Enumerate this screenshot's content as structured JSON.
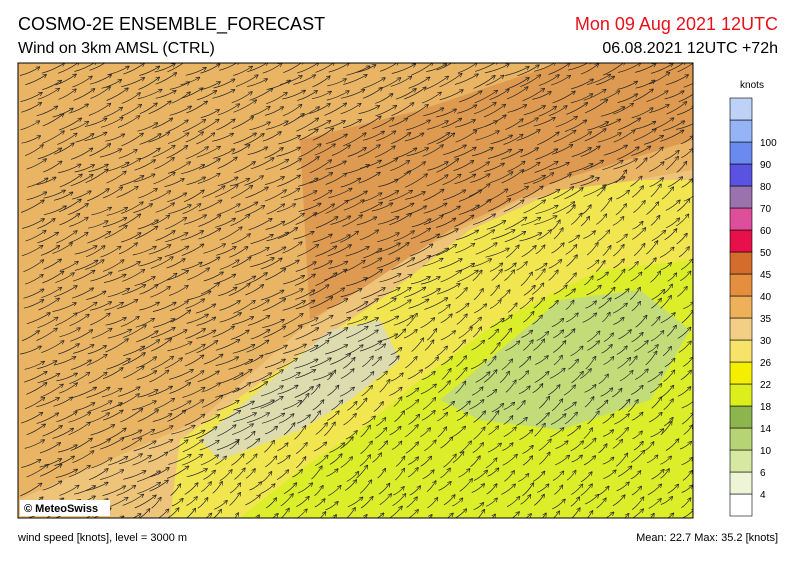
{
  "header": {
    "title": "COSMO-2E ENSEMBLE_FORECAST",
    "subtitle": "Wind on 3km AMSL (CTRL)",
    "valid_time": "Mon 09 Aug 2021 12UTC",
    "run_time": "06.08.2021 12UTC +72h"
  },
  "map": {
    "copyright": "© MeteoSwiss"
  },
  "colorbar": {
    "unit": "knots",
    "labels": [
      4,
      6,
      10,
      14,
      18,
      22,
      26,
      30,
      35,
      40,
      45,
      50,
      60,
      70,
      80,
      90,
      100
    ],
    "colors": [
      "#ffffff",
      "#eef5d6",
      "#d6e9a2",
      "#b6d474",
      "#8db54e",
      "#dcee1c",
      "#f5ee00",
      "#f7e36a",
      "#f3cf85",
      "#eeb058",
      "#e48f3e",
      "#d46d2c",
      "#e8104a",
      "#de4f9b",
      "#9a72ae",
      "#5a52e0",
      "#6a8af0",
      "#94b4f6",
      "#bed2f8"
    ]
  },
  "footer": {
    "left": "wind speed [knots], level = 3000 m",
    "right": "Mean:  22.7 Max:  35.2 [knots]"
  }
}
